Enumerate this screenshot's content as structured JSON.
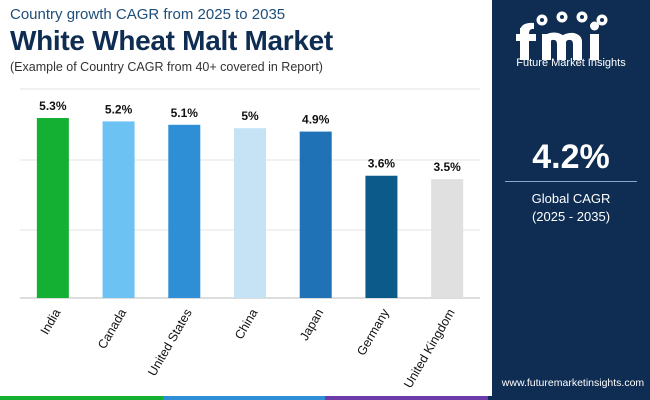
{
  "header": {
    "kicker": "Country growth CAGR from 2025 to 2035",
    "title": "White Wheat Malt Market",
    "note": "(Example of Country CAGR from 40+ covered in Report)"
  },
  "chart_data": {
    "type": "bar",
    "categories": [
      "India",
      "Canada",
      "United States",
      "China",
      "Japan",
      "Germany",
      "United Kingdom"
    ],
    "values": [
      5.3,
      5.2,
      5.1,
      5.0,
      4.9,
      3.6,
      3.5
    ],
    "value_labels": [
      "5.3%",
      "5.2%",
      "5.1%",
      "5%",
      "4.9%",
      "3.6%",
      "3.5%"
    ],
    "colors": [
      "#14b033",
      "#6cc2f2",
      "#2e8fd6",
      "#c6e3f5",
      "#1f72b5",
      "#0c5a8a",
      "#e0e0e0"
    ],
    "ylim": [
      0,
      5.3
    ],
    "grid": true,
    "title": "",
    "xlabel": "",
    "ylabel": ""
  },
  "sidebar": {
    "brand": "Future Market Insights",
    "kpi_value": "4.2%",
    "kpi_label": "Global CAGR",
    "kpi_period": "(2025 - 2035)",
    "website": "www.futuremarketinsights.com",
    "bg_color": "#0f2d52"
  },
  "footer_colors": [
    "#14b033",
    "#2e8fd6",
    "#6c3ca8",
    "#0f2d52"
  ]
}
